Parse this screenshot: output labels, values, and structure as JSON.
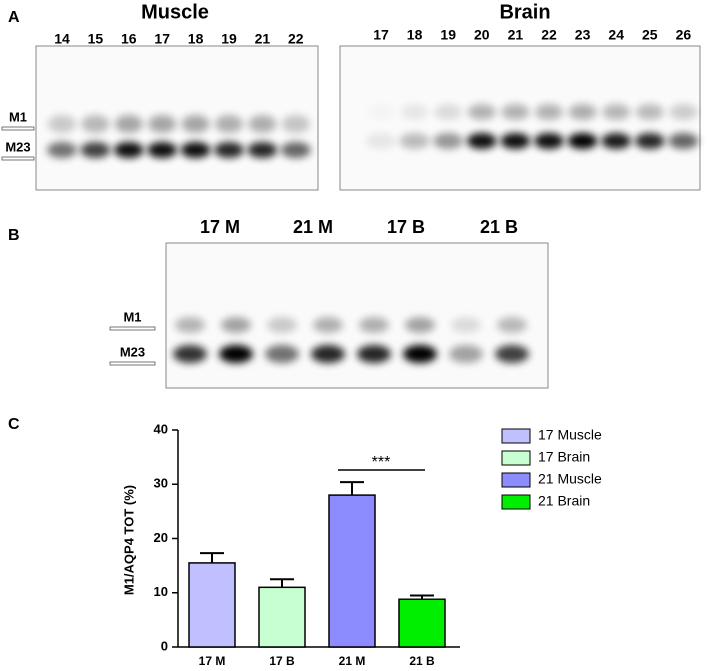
{
  "panel_a": {
    "label": "A",
    "muscle": {
      "title": "Muscle",
      "lanes": [
        "14",
        "15",
        "16",
        "17",
        "18",
        "19",
        "21",
        "22"
      ]
    },
    "brain": {
      "title": "Brain",
      "lanes": [
        "17",
        "18",
        "19",
        "20",
        "21",
        "22",
        "23",
        "24",
        "25",
        "26"
      ]
    },
    "markers": [
      "M1",
      "M23"
    ]
  },
  "panel_b": {
    "label": "B",
    "lanes": [
      "17 M",
      "21 M",
      "17 B",
      "21 B"
    ],
    "markers": [
      "M1",
      "M23"
    ]
  },
  "chart_data": {
    "type": "bar",
    "panel_label": "C",
    "y_label": "M1/AQP4 TOT (%)",
    "categories": [
      "17 M",
      "17 B",
      "21 M",
      "21 B"
    ],
    "values": [
      15.5,
      11,
      28,
      8.8
    ],
    "errors": [
      1.8,
      1.5,
      2.4,
      0.7
    ],
    "colors": [
      "#c0c0ff",
      "#c8ffd0",
      "#8c8cff",
      "#00ee00"
    ],
    "legend": [
      "17 Muscle",
      "17 Brain",
      "21 Muscle",
      "21 Brain"
    ],
    "annotation": "***",
    "ylim": [
      0,
      40
    ],
    "yticks": [
      0,
      10,
      20,
      30,
      40
    ]
  }
}
